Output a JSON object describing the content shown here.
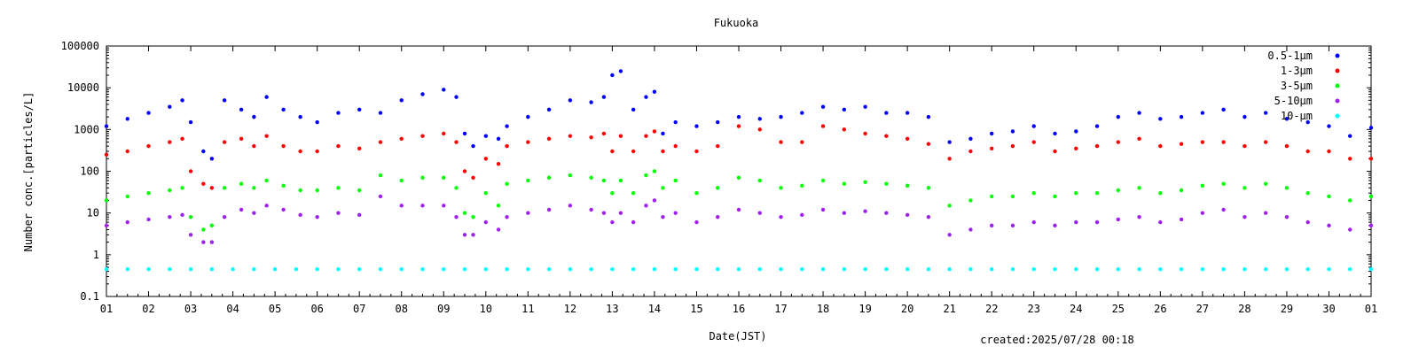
{
  "chart_data": {
    "type": "scatter",
    "title": "Fukuoka",
    "xlabel": "Date(JST)",
    "ylabel": "Number conc.[particles/L]",
    "yscale": "log",
    "ylim": [
      0.1,
      100000
    ],
    "xlim": [
      1,
      31
    ],
    "y_ticks": [
      "0.1",
      "1",
      "10",
      "100",
      "1000",
      "10000",
      "100000"
    ],
    "x_ticks": [
      "01",
      "02",
      "03",
      "04",
      "05",
      "06",
      "07",
      "08",
      "09",
      "10",
      "11",
      "12",
      "13",
      "14",
      "15",
      "16",
      "17",
      "18",
      "19",
      "20",
      "21",
      "22",
      "23",
      "24",
      "25",
      "26",
      "27",
      "28",
      "29",
      "30",
      "01"
    ],
    "legend_position": "top-right",
    "grid": false,
    "footer": "created:2025/07/28 00:18",
    "series": [
      {
        "name": "0.5-1μm",
        "color": "#0000ff",
        "x": [
          1,
          1.5,
          2,
          2.5,
          2.8,
          3,
          3.3,
          3.5,
          3.8,
          4.2,
          4.5,
          4.8,
          5.2,
          5.6,
          6,
          6.5,
          7,
          7.5,
          8,
          8.5,
          9,
          9.3,
          9.5,
          9.7,
          10,
          10.3,
          10.5,
          11,
          11.5,
          12,
          12.5,
          12.8,
          13,
          13.2,
          13.5,
          13.8,
          14,
          14.2,
          14.5,
          15,
          15.5,
          16,
          16.5,
          17,
          17.5,
          18,
          18.5,
          19,
          19.5,
          20,
          20.5,
          21,
          21.5,
          22,
          22.5,
          23,
          23.5,
          24,
          24.5,
          25,
          25.5,
          26,
          26.5,
          27,
          27.5,
          28,
          28.5,
          29,
          29.5,
          30,
          30.5,
          31
        ],
        "y": [
          1200,
          1800,
          2500,
          3500,
          5000,
          1500,
          300,
          200,
          5000,
          3000,
          2000,
          6000,
          3000,
          2000,
          1500,
          2500,
          3000,
          2500,
          5000,
          7000,
          9000,
          6000,
          800,
          400,
          700,
          600,
          1200,
          2000,
          3000,
          5000,
          4500,
          6000,
          20000,
          25000,
          3000,
          6000,
          8000,
          800,
          1500,
          1200,
          1500,
          2000,
          1800,
          2000,
          2500,
          3500,
          3000,
          3500,
          2500,
          2500,
          2000,
          500,
          600,
          800,
          900,
          1200,
          800,
          900,
          1200,
          2000,
          2500,
          1800,
          2000,
          2500,
          3000,
          2000,
          2500,
          1800,
          1500,
          1200,
          700,
          1100
        ]
      },
      {
        "name": "1-3μm",
        "color": "#ff0000",
        "x": [
          1,
          1.5,
          2,
          2.5,
          2.8,
          3,
          3.3,
          3.5,
          3.8,
          4.2,
          4.5,
          4.8,
          5.2,
          5.6,
          6,
          6.5,
          7,
          7.5,
          8,
          8.5,
          9,
          9.3,
          9.5,
          9.7,
          10,
          10.3,
          10.5,
          11,
          11.5,
          12,
          12.5,
          12.8,
          13,
          13.2,
          13.5,
          13.8,
          14,
          14.2,
          14.5,
          15,
          15.5,
          16,
          16.5,
          17,
          17.5,
          18,
          18.5,
          19,
          19.5,
          20,
          20.5,
          21,
          21.5,
          22,
          22.5,
          23,
          23.5,
          24,
          24.5,
          25,
          25.5,
          26,
          26.5,
          27,
          27.5,
          28,
          28.5,
          29,
          29.5,
          30,
          30.5,
          31
        ],
        "y": [
          250,
          300,
          400,
          500,
          600,
          100,
          50,
          40,
          500,
          600,
          400,
          700,
          400,
          300,
          300,
          400,
          350,
          500,
          600,
          700,
          800,
          500,
          100,
          70,
          200,
          150,
          400,
          500,
          600,
          700,
          650,
          800,
          300,
          700,
          300,
          700,
          900,
          300,
          400,
          300,
          400,
          1200,
          1000,
          500,
          500,
          1200,
          1000,
          800,
          700,
          600,
          450,
          200,
          300,
          350,
          400,
          500,
          300,
          350,
          400,
          500,
          600,
          400,
          450,
          500,
          500,
          400,
          500,
          400,
          300,
          300,
          200,
          200
        ]
      },
      {
        "name": "3-5μm",
        "color": "#00ff00",
        "x": [
          1,
          1.5,
          2,
          2.5,
          2.8,
          3,
          3.3,
          3.5,
          3.8,
          4.2,
          4.5,
          4.8,
          5.2,
          5.6,
          6,
          6.5,
          7,
          7.5,
          8,
          8.5,
          9,
          9.3,
          9.5,
          9.7,
          10,
          10.3,
          10.5,
          11,
          11.5,
          12,
          12.5,
          12.8,
          13,
          13.2,
          13.5,
          13.8,
          14,
          14.2,
          14.5,
          15,
          15.5,
          16,
          16.5,
          17,
          17.5,
          18,
          18.5,
          19,
          19.5,
          20,
          20.5,
          21,
          21.5,
          22,
          22.5,
          23,
          23.5,
          24,
          24.5,
          25,
          25.5,
          26,
          26.5,
          27,
          27.5,
          28,
          28.5,
          29,
          29.5,
          30,
          30.5,
          31
        ],
        "y": [
          20,
          25,
          30,
          35,
          40,
          8,
          4,
          5,
          40,
          50,
          40,
          60,
          45,
          35,
          35,
          40,
          35,
          80,
          60,
          70,
          70,
          40,
          10,
          8,
          30,
          15,
          50,
          60,
          70,
          80,
          70,
          60,
          30,
          60,
          30,
          80,
          100,
          40,
          60,
          30,
          40,
          70,
          60,
          40,
          45,
          60,
          50,
          55,
          50,
          45,
          40,
          15,
          20,
          25,
          25,
          30,
          25,
          30,
          30,
          35,
          40,
          30,
          35,
          45,
          50,
          40,
          50,
          40,
          30,
          25,
          20,
          25
        ]
      },
      {
        "name": "5-10μm",
        "color": "#a020f0",
        "x": [
          1,
          1.5,
          2,
          2.5,
          2.8,
          3,
          3.3,
          3.5,
          3.8,
          4.2,
          4.5,
          4.8,
          5.2,
          5.6,
          6,
          6.5,
          7,
          7.5,
          8,
          8.5,
          9,
          9.3,
          9.5,
          9.7,
          10,
          10.3,
          10.5,
          11,
          11.5,
          12,
          12.5,
          12.8,
          13,
          13.2,
          13.5,
          13.8,
          14,
          14.2,
          14.5,
          15,
          15.5,
          16,
          16.5,
          17,
          17.5,
          18,
          18.5,
          19,
          19.5,
          20,
          20.5,
          21,
          21.5,
          22,
          22.5,
          23,
          23.5,
          24,
          24.5,
          25,
          25.5,
          26,
          26.5,
          27,
          27.5,
          28,
          28.5,
          29,
          29.5,
          30,
          30.5,
          31
        ],
        "y": [
          5,
          6,
          7,
          8,
          9,
          3,
          2,
          2,
          8,
          12,
          10,
          15,
          12,
          9,
          8,
          10,
          9,
          25,
          15,
          15,
          15,
          8,
          3,
          3,
          6,
          4,
          8,
          10,
          12,
          15,
          12,
          10,
          6,
          10,
          6,
          15,
          20,
          8,
          10,
          6,
          8,
          12,
          10,
          8,
          9,
          12,
          10,
          11,
          10,
          9,
          8,
          3,
          4,
          5,
          5,
          6,
          5,
          6,
          6,
          7,
          8,
          6,
          7,
          10,
          12,
          8,
          10,
          8,
          6,
          5,
          4,
          5
        ]
      },
      {
        "name": "10-μm",
        "color": "#00ffff",
        "x": [
          1,
          1.5,
          2,
          2.5,
          3,
          3.5,
          4,
          4.5,
          5,
          5.5,
          6,
          6.5,
          7,
          7.5,
          8,
          8.5,
          9,
          9.5,
          10,
          10.5,
          11,
          11.5,
          12,
          12.5,
          13,
          13.5,
          14,
          14.5,
          15,
          15.5,
          16,
          16.5,
          17,
          17.5,
          18,
          18.5,
          19,
          19.5,
          20,
          20.5,
          21,
          21.5,
          22,
          22.5,
          23,
          23.5,
          24,
          24.5,
          25,
          25.5,
          26,
          26.5,
          27,
          27.5,
          28,
          28.5,
          29,
          29.5,
          30,
          30.5,
          31
        ],
        "y": [
          0.45,
          0.45,
          0.45,
          0.45,
          0.45,
          0.45,
          0.45,
          0.45,
          0.45,
          0.45,
          0.45,
          0.45,
          0.45,
          0.45,
          0.45,
          0.45,
          0.45,
          0.45,
          0.45,
          0.45,
          0.45,
          0.45,
          0.45,
          0.45,
          0.45,
          0.45,
          0.45,
          0.45,
          0.45,
          0.45,
          0.45,
          0.45,
          0.45,
          0.45,
          0.45,
          0.45,
          0.45,
          0.45,
          0.45,
          0.45,
          0.45,
          0.45,
          0.45,
          0.45,
          0.45,
          0.45,
          0.45,
          0.45,
          0.45,
          0.45,
          0.45,
          0.45,
          0.45,
          0.45,
          0.45,
          0.45,
          0.45,
          0.45,
          0.45,
          0.45,
          0.45
        ]
      }
    ]
  }
}
